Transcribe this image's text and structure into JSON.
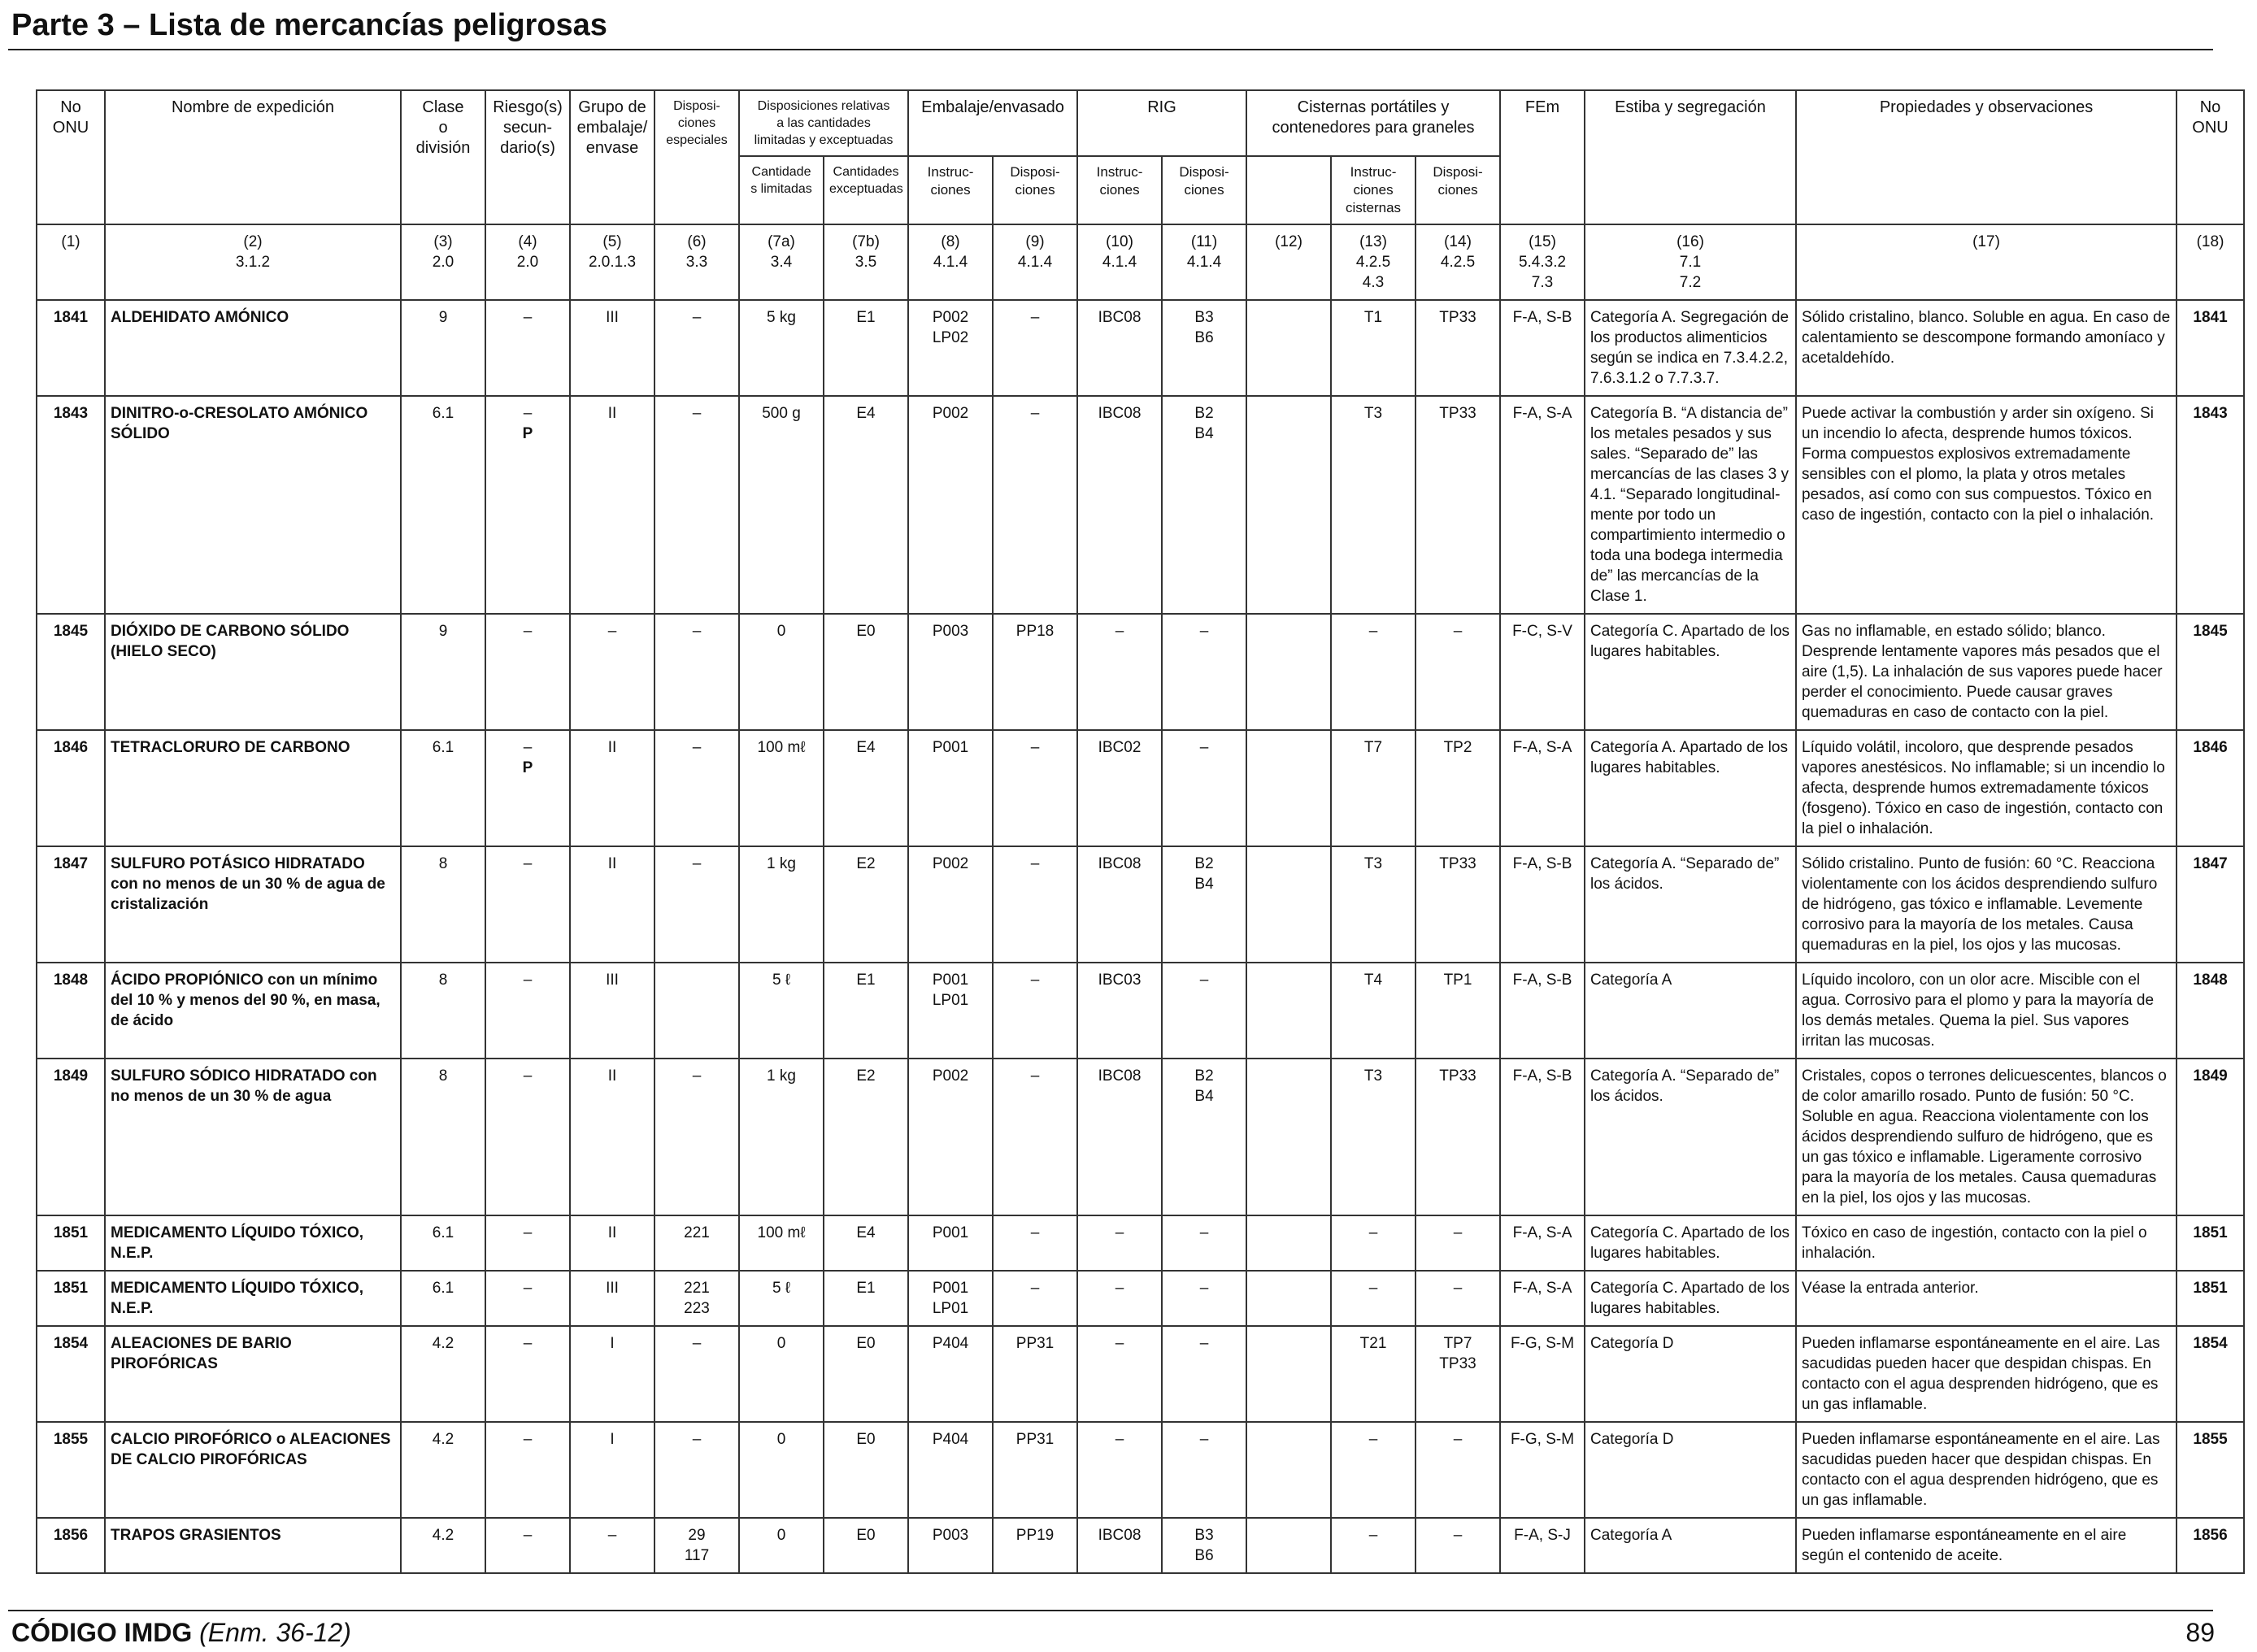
{
  "page_title": "Parte 3 – Lista de mercancías peligrosas",
  "headers": {
    "no_onu": "No\nONU",
    "nombre": "Nombre de expedición",
    "clase": "Clase\no\ndivisión",
    "riesgo": "Riesgo(s)\nsecun-\ndario(s)",
    "grupo": "Grupo de\nembalaje/\nenvase",
    "disp_esp": "Disposi-\nciones\nespeciales",
    "disp_rel": "Disposiciones relativas\na las cantidades\nlimitadas y exceptuadas",
    "cant_lim": "Cantidade\ns limitadas",
    "cant_exc": "Cantidades\nexceptuadas",
    "embalaje": "Embalaje/envasado",
    "emb_instr": "Instruc-\nciones",
    "emb_disp": "Disposi-\nciones",
    "rig": "RIG",
    "rig_instr": "Instruc-\nciones",
    "rig_disp": "Disposi-\nciones",
    "cisternas": "Cisternas portátiles y\ncontenedores para graneles",
    "cis_instr": "Instruc-\nciones\ncisternas",
    "cis_disp": "Disposi-\nciones",
    "fem": "FEm",
    "estiba": "Estiba y segregación",
    "propiedades": "Propiedades y observaciones",
    "no_onu_end": "No\nONU"
  },
  "column_numbers": [
    "(1)",
    "(2)\n3.1.2",
    "(3)\n2.0",
    "(4)\n2.0",
    "(5)\n2.0.1.3",
    "(6)\n3.3",
    "(7a)\n3.4",
    "(7b)\n3.5",
    "(8)\n4.1.4",
    "(9)\n4.1.4",
    "(10)\n4.1.4",
    "(11)\n4.1.4",
    "(12)",
    "(13)\n4.2.5\n4.3",
    "(14)\n4.2.5",
    "(15)\n5.4.3.2\n7.3",
    "(16)\n7.1\n7.2",
    "(17)",
    "(18)"
  ],
  "rows": [
    {
      "onu": "1841",
      "name": "ALDEHIDATO AMÓNICO",
      "clase": "9",
      "riesgo": "–",
      "grupo": "III",
      "disp": "–",
      "lim": "5 kg",
      "exc": "E1",
      "emb_i": "P002\nLP02",
      "emb_d": "–",
      "rig_i": "IBC08",
      "rig_d": "B3\nB6",
      "c12": "",
      "cis_i": "T1",
      "cis_d": "TP33",
      "fem": "F-A, S-B",
      "estiba": "Categoría A. Segregación de los productos alimenticios según se indica en 7.3.4.2.2, 7.6.3.1.2 o 7.7.3.7.",
      "prop": "Sólido cristalino, blanco. Soluble en agua. En caso de calentamiento se descompone formando amoníaco y acetaldehído.",
      "onu_end": "1841"
    },
    {
      "onu": "1843",
      "name": "DINITRO-o-CRESOLATO AMÓNICO SÓLIDO",
      "clase": "6.1",
      "riesgo": "–\nP",
      "grupo": "II",
      "disp": "–",
      "lim": "500 g",
      "exc": "E4",
      "emb_i": "P002",
      "emb_d": "–",
      "rig_i": "IBC08",
      "rig_d": "B2\nB4",
      "c12": "",
      "cis_i": "T3",
      "cis_d": "TP33",
      "fem": "F-A, S-A",
      "estiba": "Categoría B. “A distancia de” los metales pesados y sus sales. “Separado de” las mercancías de las clases 3 y 4.1. “Separado longitudinal-mente por todo un compartimiento intermedio o toda una bodega intermedia de” las mercancías de la Clase 1.",
      "prop": "Puede activar la combustión y arder sin oxígeno. Si un incendio lo afecta, desprende humos tóxicos. Forma compuestos explosivos extremadamente sensibles con el plomo, la plata y otros metales pesados, así como con sus compuestos. Tóxico en caso de ingestión, contacto con la piel o inhalación.",
      "onu_end": "1843"
    },
    {
      "onu": "1845",
      "name": "DIÓXIDO DE CARBONO SÓLIDO (HIELO SECO)",
      "clase": "9",
      "riesgo": "–",
      "grupo": "–",
      "disp": "–",
      "lim": "0",
      "exc": "E0",
      "emb_i": "P003",
      "emb_d": "PP18",
      "rig_i": "–",
      "rig_d": "–",
      "c12": "",
      "cis_i": "–",
      "cis_d": "–",
      "fem": "F-C, S-V",
      "estiba": "Categoría C. Apartado de los lugares habitables.",
      "prop": "Gas no inflamable, en estado sólido; blanco. Desprende lentamente vapores más pesados que el aire (1,5). La inhalación de sus vapores puede hacer perder el conocimiento. Puede causar graves quemaduras en caso de contacto con la piel.",
      "onu_end": "1845"
    },
    {
      "onu": "1846",
      "name": "TETRACLORURO DE CARBONO",
      "clase": "6.1",
      "riesgo": "–\nP",
      "grupo": "II",
      "disp": "–",
      "lim": "100 mℓ",
      "exc": "E4",
      "emb_i": "P001",
      "emb_d": "–",
      "rig_i": "IBC02",
      "rig_d": "–",
      "c12": "",
      "cis_i": "T7",
      "cis_d": "TP2",
      "fem": "F-A, S-A",
      "estiba": "Categoría A. Apartado de los lugares habitables.",
      "prop": "Líquido volátil, incoloro, que desprende pesados vapores anestésicos. No inflamable; si un incendio lo afecta, desprende humos extremadamente tóxicos (fosgeno). Tóxico en caso de ingestión, contacto con la piel o inhalación.",
      "onu_end": "1846"
    },
    {
      "onu": "1847",
      "name": "SULFURO POTÁSICO HIDRATADO con no menos de un 30 % de agua de cristalización",
      "clase": "8",
      "riesgo": "–",
      "grupo": "II",
      "disp": "–",
      "lim": "1 kg",
      "exc": "E2",
      "emb_i": "P002",
      "emb_d": "–",
      "rig_i": "IBC08",
      "rig_d": "B2\nB4",
      "c12": "",
      "cis_i": "T3",
      "cis_d": "TP33",
      "fem": "F-A, S-B",
      "estiba": "Categoría A. “Separado de” los ácidos.",
      "prop": "Sólido cristalino. Punto de fusión: 60 °C. Reacciona violentamente con los ácidos desprendiendo sulfuro de hidrógeno, gas tóxico e inflamable. Levemente corrosivo para la mayoría de los metales. Causa quemaduras en la piel, los ojos y las mucosas.",
      "onu_end": "1847"
    },
    {
      "onu": "1848",
      "name": "ÁCIDO PROPIÓNICO con un mínimo del 10 % y menos del 90 %, en masa, de ácido",
      "clase": "8",
      "riesgo": "–",
      "grupo": "III",
      "disp": "",
      "lim": "5 ℓ",
      "exc": "E1",
      "emb_i": "P001\nLP01",
      "emb_d": "–",
      "rig_i": "IBC03",
      "rig_d": "–",
      "c12": "",
      "cis_i": "T4",
      "cis_d": "TP1",
      "fem": "F-A, S-B",
      "estiba": "Categoría A",
      "prop": "Líquido incoloro, con un olor acre. Miscible con el agua. Corrosivo para el plomo y para la mayoría de los demás metales. Quema la piel. Sus vapores irritan las mucosas.",
      "onu_end": "1848"
    },
    {
      "onu": "1849",
      "name": "SULFURO SÓDICO HIDRATADO con no menos de un 30 % de agua",
      "clase": "8",
      "riesgo": "–",
      "grupo": "II",
      "disp": "–",
      "lim": "1 kg",
      "exc": "E2",
      "emb_i": "P002",
      "emb_d": "–",
      "rig_i": "IBC08",
      "rig_d": "B2\nB4",
      "c12": "",
      "cis_i": "T3",
      "cis_d": "TP33",
      "fem": "F-A, S-B",
      "estiba": "Categoría A. “Separado de” los ácidos.",
      "prop": "Cristales, copos o terrones delicuescentes, blancos o de color amarillo rosado. Punto de fusión: 50 °C. Soluble en agua. Reacciona violentamente con los ácidos desprendiendo sulfuro de hidrógeno, que es un gas tóxico e inflamable. Ligeramente corrosivo para la mayoría de los metales. Causa quemaduras en la piel, los ojos y las mucosas.",
      "onu_end": "1849"
    },
    {
      "onu": "1851",
      "name": "MEDICAMENTO LÍQUIDO TÓXICO, N.E.P.",
      "clase": "6.1",
      "riesgo": "–",
      "grupo": "II",
      "disp": "221",
      "lim": "100 mℓ",
      "exc": "E4",
      "emb_i": "P001",
      "emb_d": "–",
      "rig_i": "–",
      "rig_d": "–",
      "c12": "",
      "cis_i": "–",
      "cis_d": "–",
      "fem": "F-A, S-A",
      "estiba": "Categoría C. Apartado de los lugares habitables.",
      "prop": "Tóxico en caso de ingestión, contacto con la piel o inhalación.",
      "onu_end": "1851"
    },
    {
      "onu": "1851",
      "name": "MEDICAMENTO LÍQUIDO TÓXICO, N.E.P.",
      "clase": "6.1",
      "riesgo": "–",
      "grupo": "III",
      "disp": "221\n223",
      "lim": "5 ℓ",
      "exc": "E1",
      "emb_i": "P001\nLP01",
      "emb_d": "–",
      "rig_i": "–",
      "rig_d": "–",
      "c12": "",
      "cis_i": "–",
      "cis_d": "–",
      "fem": "F-A, S-A",
      "estiba": "Categoría C. Apartado de los lugares habitables.",
      "prop": "Véase la entrada anterior.",
      "onu_end": "1851"
    },
    {
      "onu": "1854",
      "name": "ALEACIONES DE BARIO PIROFÓRICAS",
      "clase": "4.2",
      "riesgo": "–",
      "grupo": "I",
      "disp": "–",
      "lim": "0",
      "exc": "E0",
      "emb_i": "P404",
      "emb_d": "PP31",
      "rig_i": "–",
      "rig_d": "–",
      "c12": "",
      "cis_i": "T21",
      "cis_d": "TP7\nTP33",
      "fem": "F-G, S-M",
      "estiba": "Categoría D",
      "prop": "Pueden inflamarse espontáneamente en el aire. Las sacudidas pueden hacer que despidan chispas. En contacto con el agua desprenden hidrógeno, que es un gas inflamable.",
      "onu_end": "1854"
    },
    {
      "onu": "1855",
      "name": "CALCIO PIROFÓRICO o ALEACIONES DE CALCIO PIROFÓRICAS",
      "clase": "4.2",
      "riesgo": "–",
      "grupo": "I",
      "disp": "–",
      "lim": "0",
      "exc": "E0",
      "emb_i": "P404",
      "emb_d": "PP31",
      "rig_i": "–",
      "rig_d": "–",
      "c12": "",
      "cis_i": "–",
      "cis_d": "–",
      "fem": "F-G, S-M",
      "estiba": "Categoría D",
      "prop": "Pueden inflamarse espontáneamente en el aire. Las sacudidas pueden hacer que despidan chispas. En contacto con el agua desprenden hidrógeno, que es un gas inflamable.",
      "onu_end": "1855"
    },
    {
      "onu": "1856",
      "name": "TRAPOS GRASIENTOS",
      "clase": "4.2",
      "riesgo": "–",
      "grupo": "–",
      "disp": "29\n117",
      "lim": "0",
      "exc": "E0",
      "emb_i": "P003",
      "emb_d": "PP19",
      "rig_i": "IBC08",
      "rig_d": "B3\nB6",
      "c12": "",
      "cis_i": "–",
      "cis_d": "–",
      "fem": "F-A, S-J",
      "estiba": "Categoría A",
      "prop": "Pueden inflamarse espontáneamente en el aire según el contenido de aceite.",
      "onu_end": "1856"
    }
  ],
  "footer": {
    "code": "CÓDIGO IMDG",
    "amendment": "(Enm. 36-12)",
    "page_number": "89"
  }
}
